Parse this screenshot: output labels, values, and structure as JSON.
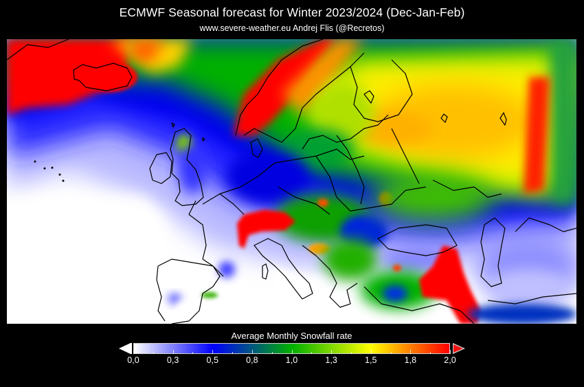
{
  "header": {
    "title": "ECMWF Seasonal forecast for Winter 2023/2024 (Dec-Jan-Feb)",
    "subtitle": "www.severe-weather.eu  Andrej Flis (@Recretos)"
  },
  "map": {
    "region": "Europe",
    "variable": "Average Monthly Snowfall rate",
    "season": "Dec-Jan-Feb 2023/2024",
    "highlights": [
      {
        "area": "Iceland / Greenland coast",
        "level": "high",
        "color": "#ff0000"
      },
      {
        "area": "Scandinavian mountains (Norway)",
        "level": "high",
        "color": "#ff0000"
      },
      {
        "area": "Alps",
        "level": "high",
        "color": "#ff0000"
      },
      {
        "area": "Caucasus / Eastern Turkey",
        "level": "high",
        "color": "#ff0000"
      },
      {
        "area": "Western Russia",
        "level": "moderate-high",
        "color": "#ffb000"
      },
      {
        "area": "Ural region",
        "level": "high",
        "color": "#ff2000"
      },
      {
        "area": "Scotland",
        "level": "moderate",
        "color": "#7fd000"
      },
      {
        "area": "Iberia / Mediterranean",
        "level": "low",
        "color": "#ffffff"
      }
    ]
  },
  "colorbar": {
    "label": "Average Monthly Snowfall rate",
    "min": 0.0,
    "max": 2.0,
    "tick_labels": [
      "0,0",
      "0,3",
      "0,5",
      "0,8",
      "1,0",
      "1,3",
      "1,5",
      "1,8",
      "2,0"
    ],
    "tick_values": [
      0.0,
      0.25,
      0.5,
      0.75,
      1.0,
      1.25,
      1.5,
      1.75,
      2.0
    ],
    "colors": {
      "0.0": "#ffffff",
      "0.5": "#0000ff",
      "1.0": "#00b000",
      "1.5": "#ffff00",
      "2.0": "#ff0000"
    },
    "extend_low_color": "#ffffff",
    "extend_high_color": "#ee1111"
  },
  "chart_data": {
    "type": "heatmap",
    "title": "ECMWF Seasonal forecast for Winter 2023/2024 (Dec-Jan-Feb)",
    "subtitle": "www.severe-weather.eu  Andrej Flis (@Recretos)",
    "colorbar_label": "Average Monthly Snowfall rate",
    "range": [
      0.0,
      2.0
    ],
    "colorbar_ticks": [
      0.0,
      0.25,
      0.5,
      0.75,
      1.0,
      1.25,
      1.5,
      1.75,
      2.0
    ],
    "colorbar_tick_labels": [
      "0,0",
      "0,3",
      "0,5",
      "0,8",
      "1,0",
      "1,3",
      "1,5",
      "1,8",
      "2,0"
    ],
    "colormap": [
      "#ffffff",
      "#0000ff",
      "#00b000",
      "#ffff00",
      "#ff0000"
    ],
    "regions_estimated": [
      {
        "region": "Iceland",
        "value": 2.0
      },
      {
        "region": "Norway mountains",
        "value": 2.0
      },
      {
        "region": "Alps",
        "value": 2.0
      },
      {
        "region": "Caucasus / E. Turkey",
        "value": 2.0
      },
      {
        "region": "Northern Urals",
        "value": 1.9
      },
      {
        "region": "Western Russia",
        "value": 1.6
      },
      {
        "region": "Finland",
        "value": 1.4
      },
      {
        "region": "Baltics / Belarus",
        "value": 1.1
      },
      {
        "region": "Poland / Ukraine",
        "value": 1.0
      },
      {
        "region": "Carpathians",
        "value": 1.7
      },
      {
        "region": "Dinaric Alps",
        "value": 1.6
      },
      {
        "region": "Scotland",
        "value": 1.1
      },
      {
        "region": "Germany / France north",
        "value": 0.6
      },
      {
        "region": "Central Turkey",
        "value": 1.1
      },
      {
        "region": "Kazakhstan",
        "value": 0.4
      },
      {
        "region": "Iberia",
        "value": 0.1
      },
      {
        "region": "Atlantic (Azores)",
        "value": 0.0
      }
    ]
  }
}
